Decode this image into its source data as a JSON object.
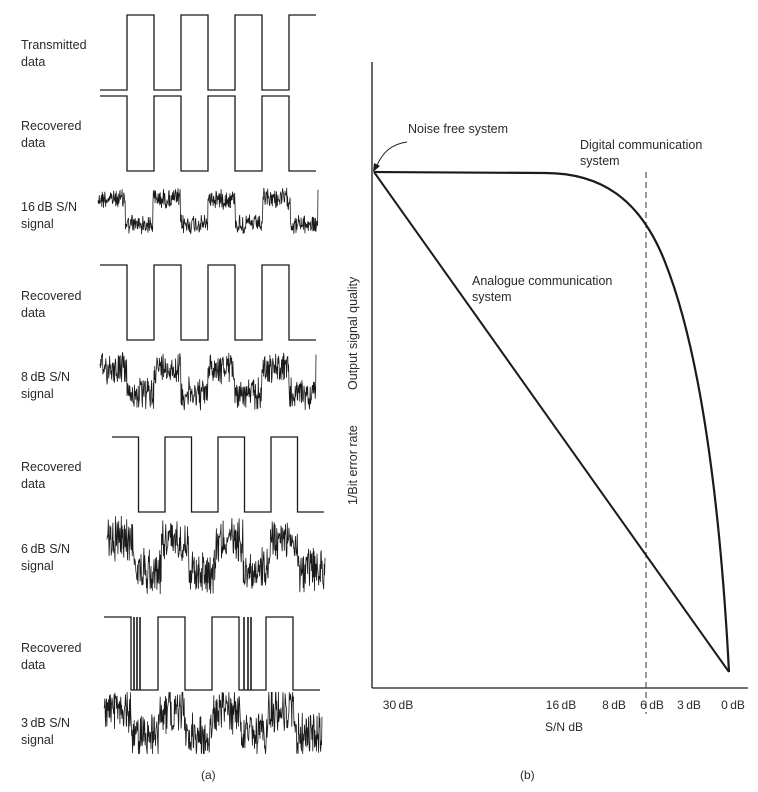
{
  "panel_a": {
    "rows": [
      {
        "label": "Transmitted\ndata",
        "kind": "square"
      },
      {
        "label": "Recovered\ndata",
        "kind": "square"
      },
      {
        "label": "16 dB S/N\nsignal",
        "kind": "noisy",
        "noise": 0.55
      },
      {
        "label": "Recovered\ndata",
        "kind": "square"
      },
      {
        "label": "8 dB S/N\nsignal",
        "kind": "noisy",
        "noise": 0.85
      },
      {
        "label": "Recovered\ndata",
        "kind": "square"
      },
      {
        "label": "6 dB S/N\nsignal",
        "kind": "noisy",
        "noise": 1.0
      },
      {
        "label": "Recovered\ndata",
        "kind": "square-errors"
      },
      {
        "label": "3 dB S/N\nsignal",
        "kind": "noisy",
        "noise": 1.3
      }
    ],
    "caption": "(a)"
  },
  "panel_b": {
    "y_axis_label_1": "Output signal quality",
    "y_axis_label_2": "1/Bit error rate",
    "x_axis_label": "S/N dB",
    "x_ticks": [
      "30 dB",
      "16 dB",
      "8 dB",
      "6 dB",
      "3 dB",
      "0 dB"
    ],
    "annotations": {
      "noise_free": "Noise free system",
      "digital": "Digital communication\nsystem",
      "analogue": "Analogue communication\nsystem"
    },
    "caption": "(b)",
    "colors": {
      "line": "#1a1a1a",
      "dashed": "#555555"
    }
  }
}
